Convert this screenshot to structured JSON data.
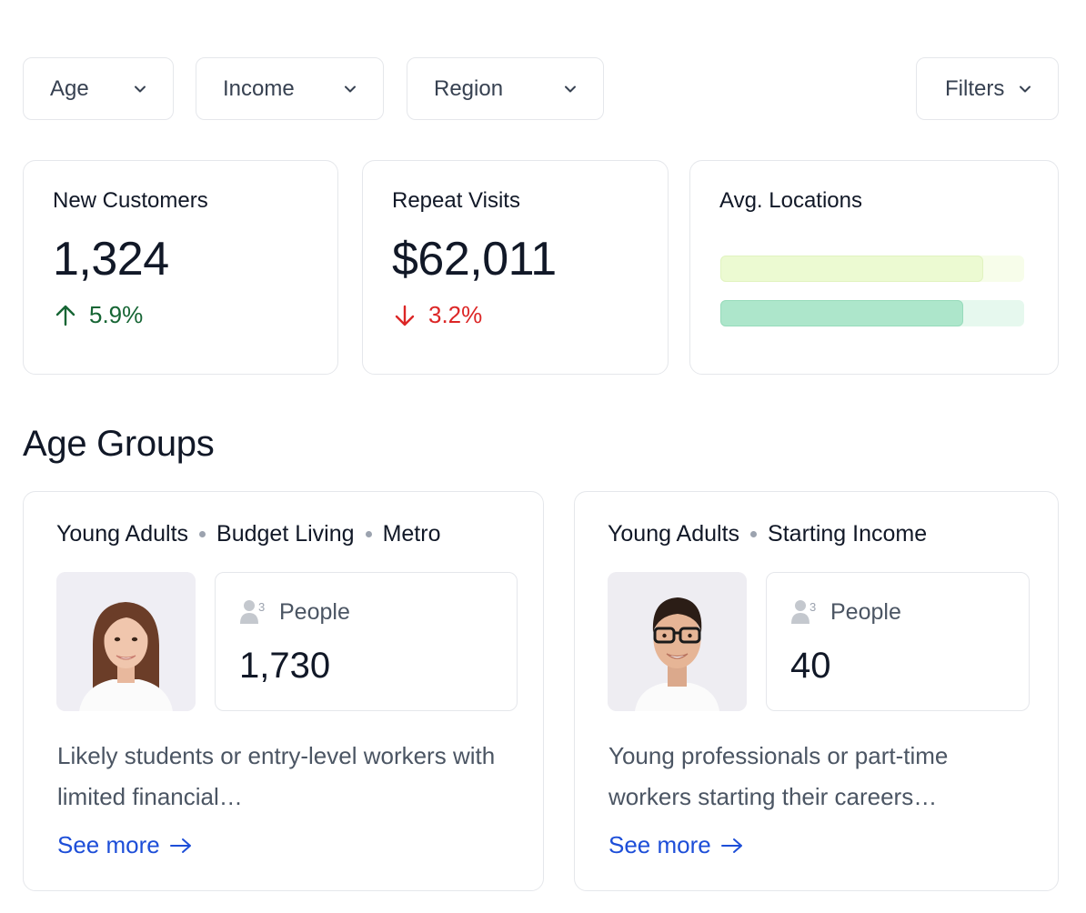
{
  "filters": {
    "age": {
      "label": "Age",
      "icon": "chevron-down-icon"
    },
    "income": {
      "label": "Income",
      "icon": "chevron-down-icon"
    },
    "region": {
      "label": "Region",
      "icon": "chevron-down-icon"
    },
    "more": {
      "label": "Filters",
      "icon": "chevron-down-icon"
    }
  },
  "stats": {
    "new_customers": {
      "title": "New Customers",
      "value": "1,324",
      "delta": "5.9%",
      "direction": "up",
      "color": "#166534"
    },
    "repeat_visits": {
      "title": "Repeat Visits",
      "value": "$62,011",
      "delta": "3.2%",
      "direction": "down",
      "color": "#dc2626"
    },
    "avg_locations": {
      "title": "Avg. Locations",
      "bars": [
        {
          "fill_fraction": 0.865,
          "color": "#ecfad2",
          "track_color": "#f7fdea"
        },
        {
          "fill_fraction": 0.8,
          "color": "#ade6cb",
          "track_color": "#e6f8ee"
        }
      ]
    }
  },
  "section": {
    "title": "Age Groups"
  },
  "groups": [
    {
      "tags": [
        "Young Adults",
        "Budget Living",
        "Metro"
      ],
      "avatar": "female-avatar",
      "people_label": "People",
      "people_icon": "people-icon",
      "people_count": "1,730",
      "description": "Likely students or entry-level workers with limited financial…",
      "link": "See more"
    },
    {
      "tags": [
        "Young Adults",
        "Starting Income"
      ],
      "avatar": "male-avatar",
      "people_label": "People",
      "people_icon": "people-icon",
      "people_count": "40",
      "description": "Young professionals or part-time workers starting their careers…",
      "link": "See more"
    }
  ]
}
